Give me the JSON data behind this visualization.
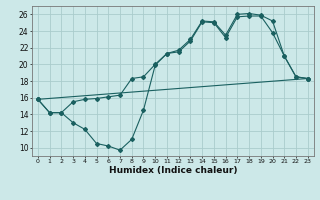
{
  "xlabel": "Humidex (Indice chaleur)",
  "bg_color": "#cce8e8",
  "grid_color": "#aacccc",
  "line_color": "#1a6060",
  "xlim": [
    -0.5,
    23.5
  ],
  "ylim": [
    9,
    27
  ],
  "xticks": [
    0,
    1,
    2,
    3,
    4,
    5,
    6,
    7,
    8,
    9,
    10,
    11,
    12,
    13,
    14,
    15,
    16,
    17,
    18,
    19,
    20,
    21,
    22,
    23
  ],
  "yticks": [
    10,
    12,
    14,
    16,
    18,
    20,
    22,
    24,
    26
  ],
  "line1_x": [
    0,
    1,
    2,
    3,
    4,
    5,
    6,
    7,
    8,
    9,
    10,
    11,
    12,
    13,
    14,
    15,
    16,
    17,
    18,
    19,
    20,
    21,
    22,
    23
  ],
  "line1_y": [
    15.8,
    14.2,
    14.2,
    13.0,
    12.2,
    10.5,
    10.2,
    9.7,
    11.0,
    14.5,
    19.9,
    21.3,
    21.5,
    22.8,
    25.1,
    25.0,
    23.2,
    25.7,
    25.8,
    25.8,
    23.8,
    21.0,
    18.5,
    18.3
  ],
  "line2_x": [
    0,
    23
  ],
  "line2_y": [
    15.8,
    18.3
  ],
  "line3_x": [
    0,
    1,
    2,
    3,
    4,
    5,
    6,
    7,
    8,
    9,
    10,
    11,
    12,
    13,
    14,
    15,
    16,
    17,
    18,
    19,
    20,
    21,
    22,
    23
  ],
  "line3_y": [
    15.8,
    14.2,
    14.2,
    15.5,
    15.8,
    15.9,
    16.1,
    16.3,
    18.3,
    18.5,
    20.0,
    21.3,
    21.7,
    23.0,
    25.2,
    25.1,
    23.5,
    26.0,
    26.1,
    25.9,
    25.2,
    21.0,
    18.5,
    18.3
  ]
}
